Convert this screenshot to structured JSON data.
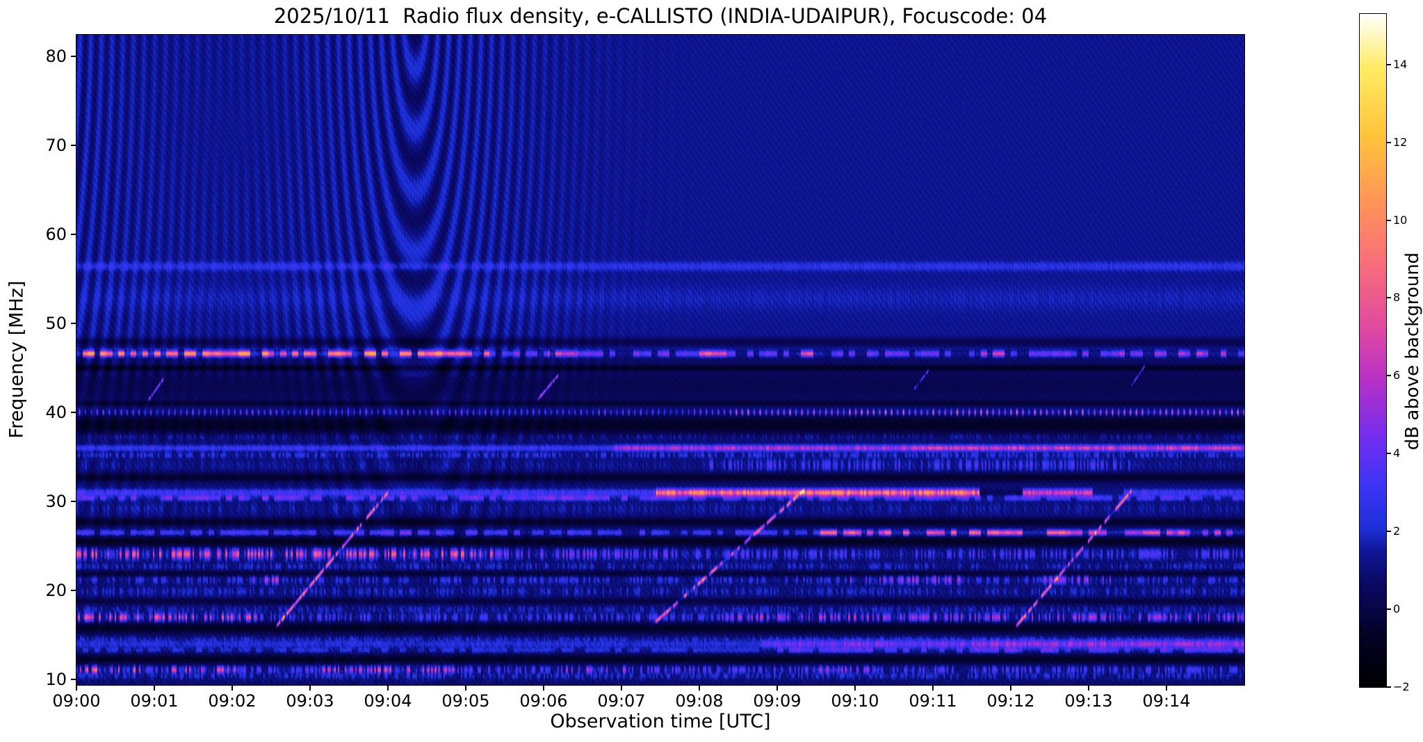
{
  "chart_data": {
    "type": "heatmap",
    "title": "2025/10/11  Radio flux density, e-CALLISTO (INDIA-UDAIPUR), Focuscode: 04",
    "xlabel": "Observation time [UTC]",
    "ylabel": "Frequency [MHz]",
    "colorbar_label": "dB above background",
    "x_start": "09:00",
    "x_end": "09:15",
    "x_range_minutes": [
      0,
      15
    ],
    "x_ticks": [
      "09:00",
      "09:01",
      "09:02",
      "09:03",
      "09:04",
      "09:05",
      "09:06",
      "09:07",
      "09:08",
      "09:09",
      "09:10",
      "09:11",
      "09:12",
      "09:13",
      "09:14"
    ],
    "y_range_mhz": [
      9.4,
      82.4
    ],
    "y_ticks": [
      10,
      20,
      30,
      40,
      50,
      60,
      70,
      80
    ],
    "value_range_db": [
      -2,
      15.3
    ],
    "colorbar_ticks": [
      {
        "value": 14,
        "label": "14"
      },
      {
        "value": 12,
        "label": "12"
      },
      {
        "value": 10,
        "label": "10"
      },
      {
        "value": 8,
        "label": "8"
      },
      {
        "value": 6,
        "label": "6"
      },
      {
        "value": 4,
        "label": "4"
      },
      {
        "value": 2,
        "label": "2"
      },
      {
        "value": 0,
        "label": "0"
      },
      {
        "value": -2,
        "label": "−2"
      }
    ],
    "grid": false,
    "legend": "none",
    "colormap_stops": [
      [
        0.0,
        0,
        0,
        0
      ],
      [
        0.07,
        3,
        2,
        35
      ],
      [
        0.15,
        10,
        8,
        95
      ],
      [
        0.2,
        15,
        22,
        150
      ],
      [
        0.235,
        28,
        48,
        215
      ],
      [
        0.3,
        62,
        52,
        245
      ],
      [
        0.37,
        115,
        45,
        238
      ],
      [
        0.45,
        180,
        48,
        202
      ],
      [
        0.53,
        224,
        72,
        162
      ],
      [
        0.62,
        247,
        106,
        126
      ],
      [
        0.72,
        255,
        148,
        88
      ],
      [
        0.82,
        255,
        196,
        58
      ],
      [
        0.92,
        255,
        236,
        100
      ],
      [
        1.0,
        255,
        255,
        255
      ]
    ],
    "background_levels_db": {
      "above_47mhz": 1.35,
      "41_to_47mhz": 0.75,
      "27_to_41mhz": 0.95,
      "below_27mhz": 0.85
    },
    "interference_fringes": {
      "description": "curved fringe ripples strongest 09:00-09:05 above ~45 MHz",
      "centers_min": [
        4.35,
        -0.8
      ],
      "envelope_widths_min": [
        1.9,
        2.2
      ],
      "amplitude_db": 0.8,
      "radial_rate": 46
    },
    "rfi_bands": [
      {
        "f": 56.4,
        "w": 0.45,
        "base": 1.6,
        "mode": "solid",
        "segments": []
      },
      {
        "f": 52.8,
        "w": 1.4,
        "base": 0.5,
        "mode": "solid",
        "segments": []
      },
      {
        "f": 47.9,
        "w": 0.5,
        "base": -1.2,
        "mode": "dark",
        "segments": []
      },
      {
        "f": 46.6,
        "w": 0.33,
        "base": 3.5,
        "mode": "dash",
        "segments": [
          [
            0,
            5.3,
            5.5
          ],
          [
            6.05,
            6.45,
            2.5
          ],
          [
            8.0,
            8.35,
            3.5
          ],
          [
            9.25,
            9.6,
            3.5
          ],
          [
            11.55,
            11.95,
            2.5
          ],
          [
            13.4,
            14.9,
            1.5
          ]
        ]
      },
      {
        "f": 45.0,
        "w": 0.35,
        "base": -1.4,
        "mode": "dark",
        "segments": []
      },
      {
        "f": 43.0,
        "w": 1.6,
        "base": -0.5,
        "mode": "dark",
        "segments": []
      },
      {
        "f": 41.0,
        "w": 0.3,
        "base": -1.2,
        "mode": "dark",
        "segments": []
      },
      {
        "f": 40.0,
        "w": 0.32,
        "base": 4.0,
        "mode": "dots",
        "segments": [
          [
            8.4,
            15,
            3.5
          ]
        ]
      },
      {
        "f": 38.6,
        "w": 1.1,
        "base": -1.7,
        "mode": "dark",
        "segments": []
      },
      {
        "f": 37.3,
        "w": 0.4,
        "base": 0.8,
        "mode": "speckle",
        "segments": []
      },
      {
        "f": 36.0,
        "w": 0.33,
        "base": 2.6,
        "mode": "solid",
        "segments": [
          [
            6.9,
            10.6,
            3.2
          ],
          [
            10.6,
            15,
            4.2
          ]
        ]
      },
      {
        "f": 35.2,
        "w": 0.3,
        "base": 1.4,
        "mode": "speckle",
        "segments": []
      },
      {
        "f": 34.1,
        "w": 0.6,
        "base": 0.5,
        "mode": "speckle",
        "segments": [
          [
            8.1,
            13.6,
            1.4
          ]
        ]
      },
      {
        "f": 32.7,
        "w": 0.5,
        "base": -1.5,
        "mode": "dark",
        "segments": []
      },
      {
        "f": 31.0,
        "w": 0.38,
        "base": 2.8,
        "mode": "solid",
        "segments": [
          [
            7.45,
            11.6,
            7.5
          ],
          [
            11.6,
            12.15,
            -3.5
          ],
          [
            12.15,
            13.05,
            4.0
          ],
          [
            13.05,
            13.45,
            -2.5
          ]
        ]
      },
      {
        "f": 30.4,
        "w": 0.3,
        "base": 2.4,
        "mode": "dash",
        "segments": [
          [
            0,
            7.45,
            0.8
          ]
        ]
      },
      {
        "f": 29.2,
        "w": 0.7,
        "base": 0.6,
        "mode": "speckle",
        "segments": []
      },
      {
        "f": 27.7,
        "w": 0.45,
        "base": -1.6,
        "mode": "dark",
        "segments": []
      },
      {
        "f": 26.5,
        "w": 0.3,
        "base": 2.6,
        "mode": "dash",
        "segments": [
          [
            4.0,
            4.6,
            1.5
          ],
          [
            9.55,
            13.25,
            4.5
          ],
          [
            13.25,
            15,
            3.5
          ]
        ]
      },
      {
        "f": 25.5,
        "w": 0.55,
        "base": -1.7,
        "mode": "dark",
        "segments": []
      },
      {
        "f": 24.1,
        "w": 0.55,
        "base": 2.2,
        "mode": "speckle",
        "segments": [
          [
            0,
            5.35,
            3.2
          ],
          [
            5.35,
            8,
            0.6
          ]
        ]
      },
      {
        "f": 22.7,
        "w": 0.4,
        "base": 1.1,
        "mode": "speckle",
        "segments": []
      },
      {
        "f": 21.9,
        "w": 0.35,
        "base": -1.2,
        "mode": "dark",
        "segments": []
      },
      {
        "f": 21.2,
        "w": 0.45,
        "base": 1.5,
        "mode": "speckle",
        "segments": [
          [
            2.2,
            2.6,
            2.5
          ],
          [
            9.9,
            11.4,
            2.0
          ],
          [
            12.4,
            13.3,
            2.0
          ]
        ]
      },
      {
        "f": 19.9,
        "w": 0.5,
        "base": 1.1,
        "mode": "speckle",
        "segments": []
      },
      {
        "f": 18.8,
        "w": 0.35,
        "base": -1.0,
        "mode": "dark",
        "segments": []
      },
      {
        "f": 17.9,
        "w": 0.4,
        "base": 0.9,
        "mode": "speckle",
        "segments": []
      },
      {
        "f": 17.0,
        "w": 0.45,
        "base": 2.0,
        "mode": "speckle",
        "segments": [
          [
            0,
            2.35,
            3.0
          ],
          [
            8.3,
            15,
            1.6
          ]
        ]
      },
      {
        "f": 15.8,
        "w": 0.6,
        "base": -1.6,
        "mode": "dark",
        "segments": []
      },
      {
        "f": 14.6,
        "w": 0.3,
        "base": 0.8,
        "mode": "speckle",
        "segments": []
      },
      {
        "f": 14.0,
        "w": 0.45,
        "base": 1.8,
        "mode": "solid",
        "segments": [
          [
            8.8,
            11.5,
            2.6
          ],
          [
            11.5,
            15,
            3.4
          ]
        ]
      },
      {
        "f": 13.3,
        "w": 0.3,
        "base": 1.4,
        "mode": "dash",
        "segments": [
          [
            9,
            15,
            1.2
          ]
        ]
      },
      {
        "f": 12.3,
        "w": 0.5,
        "base": -1.6,
        "mode": "dark",
        "segments": []
      },
      {
        "f": 11.1,
        "w": 0.4,
        "base": 2.2,
        "mode": "speckle",
        "segments": [
          [
            0,
            0.85,
            3.5
          ],
          [
            1.2,
            2.05,
            2.5
          ],
          [
            3.1,
            4.85,
            2.5
          ],
          [
            6.2,
            7.05,
            1.5
          ],
          [
            9.5,
            10.2,
            1.2
          ]
        ]
      },
      {
        "f": 10.4,
        "w": 0.35,
        "base": 1.2,
        "mode": "speckle",
        "segments": []
      }
    ],
    "sweeps": [
      {
        "t0": 2.55,
        "f0": 15.8,
        "t1": 4.02,
        "f1": 31.2,
        "intensity": 7.5,
        "w": 0.22
      },
      {
        "t0": 7.35,
        "f0": 15.8,
        "t1": 9.35,
        "f1": 31.3,
        "intensity": 7.0,
        "w": 0.22
      },
      {
        "t0": 12.05,
        "f0": 15.8,
        "t1": 13.55,
        "f1": 31.2,
        "intensity": 7.0,
        "w": 0.22
      },
      {
        "t0": 0.92,
        "f0": 41.3,
        "t1": 1.12,
        "f1": 43.8,
        "intensity": 5.0,
        "w": 0.18
      },
      {
        "t0": 5.93,
        "f0": 41.5,
        "t1": 6.2,
        "f1": 44.3,
        "intensity": 6.0,
        "w": 0.18
      },
      {
        "t0": 10.75,
        "f0": 42.5,
        "t1": 10.95,
        "f1": 44.8,
        "intensity": 4.0,
        "w": 0.16
      },
      {
        "t0": 13.55,
        "f0": 43.0,
        "t1": 13.72,
        "f1": 45.2,
        "intensity": 4.0,
        "w": 0.16
      }
    ]
  }
}
